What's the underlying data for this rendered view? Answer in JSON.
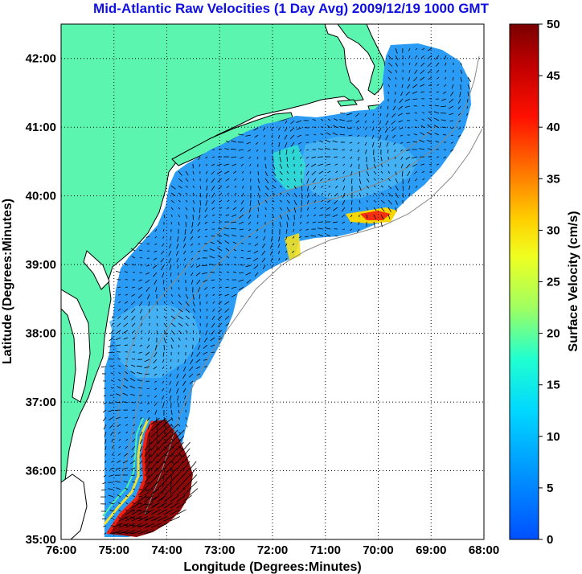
{
  "title": "Mid-Atlantic Raw Velocities (1 Day Avg) 2009/12/19 1000 GMT",
  "map": {
    "xlabel": "Longitude (Degrees:Minutes)",
    "ylabel": "Latitude (Degrees:Minutes)",
    "lon_range": [
      -76,
      -68
    ],
    "lat_range": [
      35,
      42.5
    ],
    "lon_ticks": [
      "76:00",
      "75:00",
      "74:00",
      "73:00",
      "72:00",
      "71:00",
      "70:00",
      "69:00",
      "68:00"
    ],
    "lat_ticks": [
      "35:00",
      "36:00",
      "37:00",
      "38:00",
      "39:00",
      "40:00",
      "41:00",
      "42:00"
    ],
    "grid": "dotted",
    "land_color": "#5cf5b0",
    "coast_line_color": "#000000",
    "isobath_color": "#888888",
    "vector_color": "#000000"
  },
  "colorbar": {
    "label": "Surface Velocity (cm/s)",
    "ticks": [
      "0",
      "5",
      "10",
      "15",
      "20",
      "25",
      "30",
      "35",
      "40",
      "45",
      "50"
    ],
    "range": [
      0,
      50
    ],
    "colormap": "jet"
  }
}
